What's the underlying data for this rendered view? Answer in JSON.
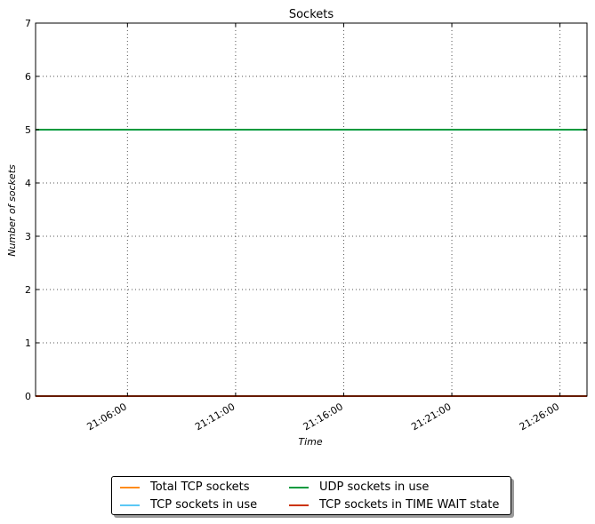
{
  "chart_data": {
    "type": "line",
    "title": "Sockets",
    "xlabel": "Time",
    "ylabel": "Number of sockets",
    "ylim": [
      0,
      7
    ],
    "xlim": [
      "21:01:45",
      "21:27:15"
    ],
    "yticks": [
      0,
      1,
      2,
      3,
      4,
      5,
      6,
      7
    ],
    "xticks": [
      "21:06:00",
      "21:11:00",
      "21:16:00",
      "21:21:00",
      "21:26:00"
    ],
    "grid": true,
    "legend_placement": "bottom-center",
    "series": [
      {
        "name": "Total TCP sockets",
        "color": "#ff8c1a",
        "x": [
          "21:01:45",
          "21:27:15"
        ],
        "values": [
          0,
          0
        ]
      },
      {
        "name": "TCP sockets in use",
        "color": "#5bc8f5",
        "x": [
          "21:01:45",
          "21:27:15"
        ],
        "values": [
          0,
          0
        ]
      },
      {
        "name": "UDP sockets in use",
        "color": "#009a3e",
        "x": [
          "21:01:45",
          "21:27:15"
        ],
        "values": [
          5,
          5
        ]
      },
      {
        "name": "TCP sockets in TIME WAIT state",
        "color": "#cc3300",
        "x": [
          "21:01:45",
          "21:27:15"
        ],
        "values": [
          0,
          0
        ]
      }
    ]
  }
}
